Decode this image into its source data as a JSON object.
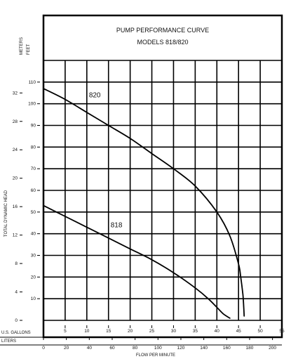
{
  "chart_data": {
    "type": "line",
    "title": "PUMP PERFORMANCE CURVE",
    "subtitle": "MODELS 818/820",
    "xlabel": "FLOW PER MINUTE",
    "ylabel": "TOTAL DYNAMIC HEAD",
    "x_axis_primary": {
      "name": "U.S. GALLONS",
      "ticks": [
        5,
        10,
        15,
        20,
        25,
        30,
        35,
        40,
        45,
        50,
        55
      ],
      "range": [
        0,
        55
      ]
    },
    "x_axis_secondary": {
      "name": "LITERS",
      "ticks": [
        0,
        20,
        40,
        60,
        80,
        100,
        120,
        140,
        160,
        180,
        200
      ]
    },
    "y_axis_primary": {
      "name": "FEET",
      "ticks": [
        10,
        20,
        30,
        40,
        50,
        60,
        70,
        80,
        90,
        100,
        110
      ],
      "range": [
        0,
        120
      ]
    },
    "y_axis_secondary": {
      "name": "METERS",
      "ticks": [
        0,
        4,
        8,
        12,
        16,
        20,
        24,
        28,
        32
      ]
    },
    "grid": true,
    "series": [
      {
        "name": "820",
        "x": [
          0,
          5,
          10,
          15,
          20,
          25,
          30,
          35,
          40,
          43,
          45,
          45.5,
          46,
          46.2,
          46.3
        ],
        "y": [
          107,
          102,
          96,
          90,
          84,
          77,
          70,
          62,
          50,
          39,
          26,
          20,
          12,
          6,
          2
        ]
      },
      {
        "name": "818",
        "x": [
          0,
          5,
          10,
          15,
          20,
          25,
          30,
          35,
          38,
          40,
          41.5,
          43
        ],
        "y": [
          53,
          48,
          43,
          38,
          33,
          28,
          22,
          15,
          10,
          6,
          3,
          1
        ]
      }
    ]
  }
}
